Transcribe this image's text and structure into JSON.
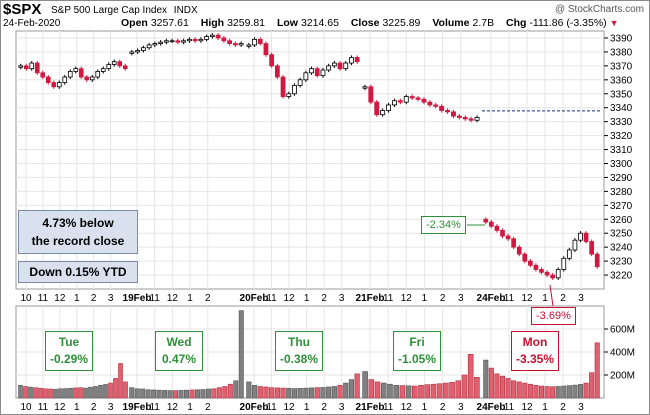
{
  "header": {
    "symbol": "$SPX",
    "name": "S&P 500 Large Cap Index",
    "exchange": "INDX",
    "watermark": "@ StockCharts.com",
    "date": "24-Feb-2020",
    "open_label": "Open",
    "open": "3257.61",
    "high_label": "High",
    "high": "3259.81",
    "low_label": "Low",
    "low": "3214.65",
    "close_label": "Close",
    "close": "3225.89",
    "volume_label": "Volume",
    "volume": "2.7B",
    "chg_label": "Chg",
    "chg": "-111.86 (-3.35%)",
    "chg_direction": "down"
  },
  "annotations": {
    "record_line1": "4.73% below",
    "record_line2": "the record close",
    "ytd": "Down 0.15% YTD",
    "friday_move": "-2.34%",
    "monday_move": "-3.69%"
  },
  "day_boxes": [
    {
      "day": "Tue",
      "change": "-0.29%",
      "color": "green"
    },
    {
      "day": "Wed",
      "change": "0.47%",
      "color": "green"
    },
    {
      "day": "Thu",
      "change": "-0.38%",
      "color": "green"
    },
    {
      "day": "Fri",
      "change": "-1.05%",
      "color": "green"
    },
    {
      "day": "Mon",
      "change": "-3.35%",
      "color": "red"
    }
  ],
  "colors": {
    "up": "#000000",
    "down": "#d01840",
    "vol_up": "#808080",
    "vol_down": "#e06070",
    "grid": "#e6e6e6",
    "green": "#2f8f3a",
    "red": "#c8102e"
  },
  "chart_data": [
    {
      "type": "candlestick",
      "title": "",
      "ylim": [
        3210,
        3395
      ],
      "y_ticks": [
        3220,
        3230,
        3240,
        3250,
        3260,
        3270,
        3280,
        3290,
        3300,
        3310,
        3320,
        3330,
        3340,
        3350,
        3360,
        3370,
        3380,
        3390
      ],
      "x_tick_labels": [
        "10",
        "11",
        "12",
        "1",
        "2",
        "3",
        "19Feb",
        "11",
        "12",
        "1",
        "2",
        "20Feb",
        "11",
        "12",
        "1",
        "2",
        "3",
        "21Feb",
        "11",
        "12",
        "1",
        "2",
        "3",
        "24Feb",
        "11",
        "12",
        "1",
        "2",
        "3"
      ],
      "grid": true,
      "prior_close_reference": 3337.75,
      "days": [
        {
          "date": "18Feb",
          "closes": [
            3370,
            3368,
            3372,
            3365,
            3362,
            3358,
            3355,
            3358,
            3362,
            3366,
            3368,
            3362,
            3360,
            3362,
            3366,
            3368,
            3371,
            3373,
            3370,
            3368
          ]
        },
        {
          "date": "19Feb",
          "closes": [
            3380,
            3381,
            3383,
            3385,
            3386,
            3387,
            3388,
            3388,
            3387,
            3388,
            3389,
            3388,
            3389,
            3391,
            3392,
            3390,
            3388,
            3386,
            3385,
            3386
          ]
        },
        {
          "date": "20Feb",
          "closes": [
            3385,
            3389,
            3386,
            3378,
            3370,
            3362,
            3348,
            3350,
            3356,
            3360,
            3365,
            3368,
            3363,
            3367,
            3370,
            3372,
            3368,
            3372,
            3376,
            3373
          ]
        },
        {
          "date": "21Feb",
          "closes": [
            3355,
            3344,
            3335,
            3338,
            3342,
            3345,
            3344,
            3348,
            3347,
            3346,
            3344,
            3342,
            3341,
            3338,
            3337,
            3334,
            3333,
            3332,
            3331,
            3333
          ]
        },
        {
          "date": "24Feb",
          "closes": [
            3258,
            3255,
            3252,
            3248,
            3246,
            3240,
            3235,
            3230,
            3227,
            3224,
            3222,
            3220,
            3218,
            3224,
            3232,
            3238,
            3245,
            3250,
            3244,
            3235,
            3226
          ]
        }
      ]
    },
    {
      "type": "bar",
      "title": "",
      "ylabel": "",
      "ylim": [
        0,
        800
      ],
      "y_tick_labels": [
        "200M",
        "400M",
        "600M"
      ],
      "y_ticks": [
        200,
        400,
        600
      ],
      "days": [
        {
          "date": "18Feb",
          "values": [
            110,
            100,
            95,
            90,
            85,
            80,
            78,
            76,
            80,
            82,
            84,
            88,
            90,
            86,
            94,
            100,
            110,
            118,
            130,
            170,
            300,
            140
          ]
        },
        {
          "date": "19Feb",
          "values": [
            90,
            80,
            78,
            72,
            70,
            68,
            66,
            65,
            64,
            66,
            68,
            70,
            72,
            74,
            78,
            80,
            90,
            100,
            120,
            150,
            760
          ]
        },
        {
          "date": "20Feb",
          "values": [
            140,
            110,
            100,
            96,
            90,
            88,
            86,
            84,
            82,
            84,
            86,
            88,
            90,
            92,
            96,
            100,
            110,
            130,
            160,
            210
          ]
        },
        {
          "date": "21Feb",
          "values": [
            230,
            160,
            140,
            130,
            120,
            110,
            108,
            106,
            104,
            110,
            116,
            120,
            124,
            130,
            136,
            150,
            200,
            380,
            180
          ]
        },
        {
          "date": "24Feb",
          "values": [
            330,
            260,
            210,
            190,
            170,
            150,
            140,
            130,
            120,
            110,
            104,
            100,
            98,
            100,
            104,
            108,
            112,
            118,
            130,
            220,
            480
          ]
        }
      ]
    }
  ]
}
